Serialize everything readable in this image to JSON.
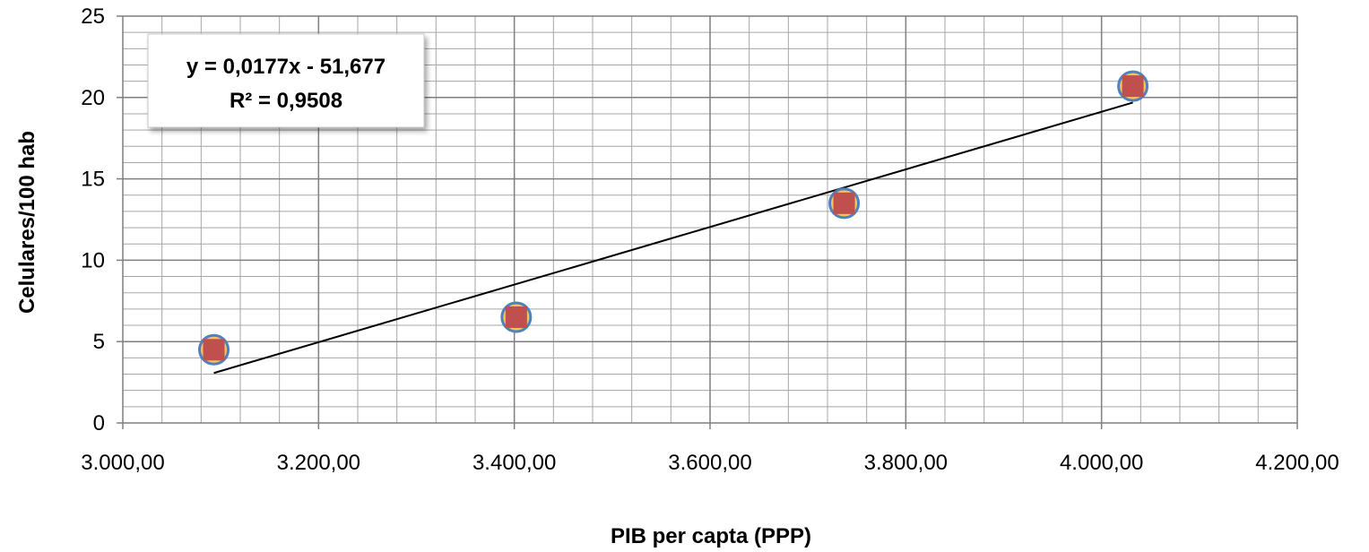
{
  "chart_data": {
    "type": "scatter",
    "title": "",
    "xlabel": "PIB per capta (PPP)",
    "ylabel": "Celulares/100 hab",
    "xlim": [
      3000,
      4200
    ],
    "ylim": [
      0,
      25
    ],
    "x_ticks": [
      3000,
      3200,
      3400,
      3600,
      3800,
      4000,
      4200
    ],
    "x_tick_labels": [
      "3.000,00",
      "3.200,00",
      "3.400,00",
      "3.600,00",
      "3.800,00",
      "4.000,00",
      "4.200,00"
    ],
    "y_ticks": [
      0,
      5,
      10,
      15,
      20,
      25
    ],
    "y_tick_labels": [
      "0",
      "5",
      "10",
      "15",
      "20",
      "25"
    ],
    "x_minor_step": 40,
    "y_minor_step": 1,
    "grid": true,
    "legend": "none",
    "series": [
      {
        "points": [
          {
            "x": 3093,
            "y": 4.5
          },
          {
            "x": 3402,
            "y": 6.5
          },
          {
            "x": 3737,
            "y": 13.5
          },
          {
            "x": 4032,
            "y": 20.7
          }
        ],
        "marker": "circle-with-square",
        "marker_colors": {
          "circle": "#4f81bd",
          "circle_fill": "#f7c35f",
          "square": "#c0504d"
        }
      }
    ],
    "trendline": {
      "type": "linear",
      "slope": 0.0177,
      "intercept": -51.677,
      "x_range": [
        3093,
        4032
      ],
      "color": "#000000"
    },
    "annotation": {
      "equation": "y = 0,0177x - 51,677",
      "r_squared": "R² = 0,9508"
    }
  }
}
